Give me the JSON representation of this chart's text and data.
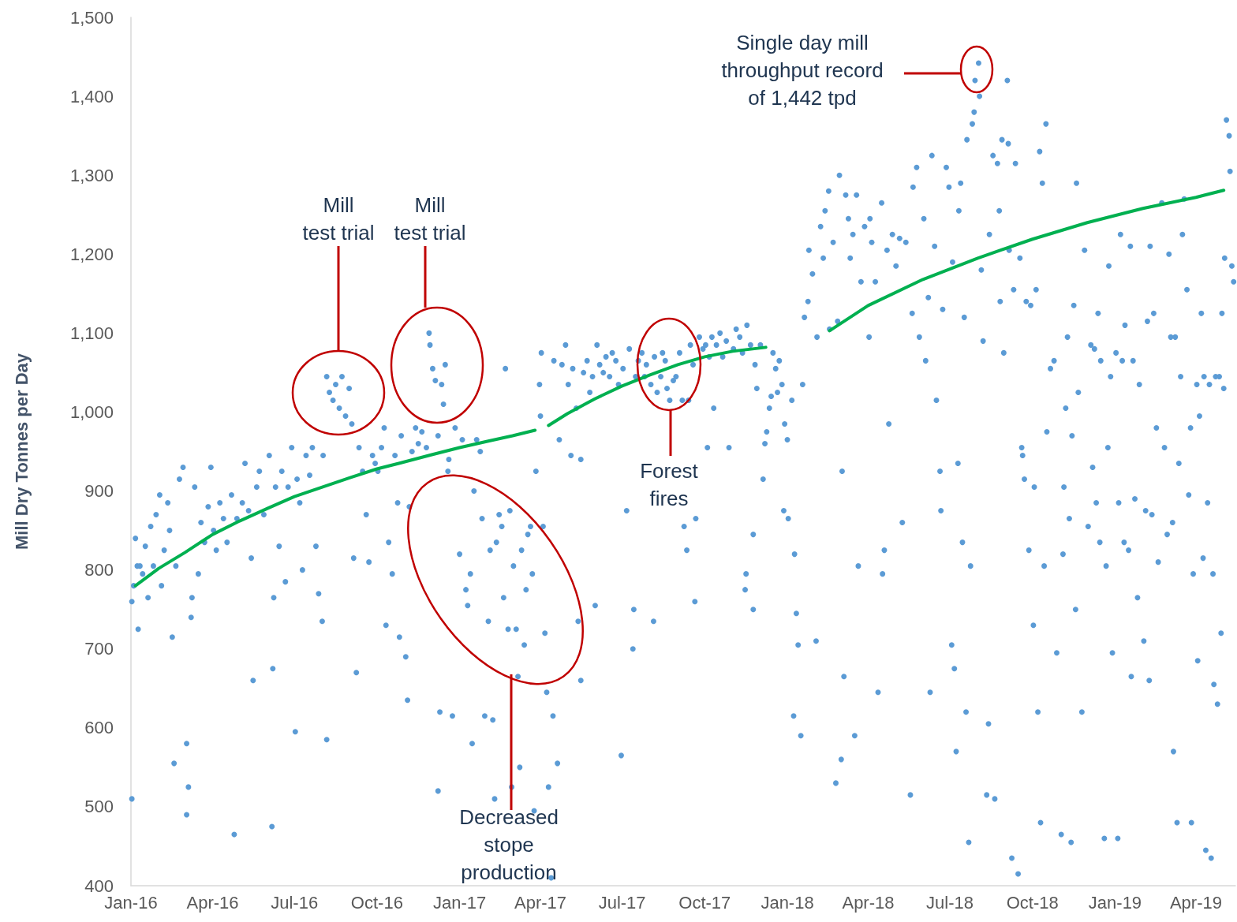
{
  "chart_data": {
    "type": "scatter",
    "ylabel": "Mill Dry Tonnes per Day",
    "xlim": [
      "2016-01-01",
      "2019-05-15"
    ],
    "xticks": [
      {
        "value": "2016-01-01",
        "label": "Jan-16"
      },
      {
        "value": "2016-04-01",
        "label": "Apr-16"
      },
      {
        "value": "2016-07-01",
        "label": "Jul-16"
      },
      {
        "value": "2016-10-01",
        "label": "Oct-16"
      },
      {
        "value": "2017-01-01",
        "label": "Jan-17"
      },
      {
        "value": "2017-04-01",
        "label": "Apr-17"
      },
      {
        "value": "2017-07-01",
        "label": "Jul-17"
      },
      {
        "value": "2017-10-01",
        "label": "Oct-17"
      },
      {
        "value": "2018-01-01",
        "label": "Jan-18"
      },
      {
        "value": "2018-04-01",
        "label": "Apr-18"
      },
      {
        "value": "2018-07-01",
        "label": "Jul-18"
      },
      {
        "value": "2018-10-01",
        "label": "Oct-18"
      },
      {
        "value": "2019-01-01",
        "label": "Jan-19"
      },
      {
        "value": "2019-04-01",
        "label": "Apr-19"
      }
    ],
    "ylim": [
      400,
      1500
    ],
    "yticks": [
      400,
      500,
      600,
      700,
      800,
      900,
      {
        "value": 1000,
        "label": "1,000"
      },
      {
        "value": 1100,
        "label": "1,100"
      },
      {
        "value": 1200,
        "label": "1,200"
      },
      {
        "value": 1300,
        "label": "1,300"
      },
      {
        "value": 1400,
        "label": "1,400"
      },
      {
        "value": 1500,
        "label": "1,500"
      }
    ],
    "annotations": [
      "Mill\ntest trial",
      "Mill\ntest trial",
      "Forest\nfires",
      "Decreased\nstope\nproduction",
      "Single day mill\nthroughput record\nof 1,442 tpd"
    ],
    "series": [
      {
        "color": "#5b9bd5",
        "marker": "circle",
        "x": [
          "2016-01-02",
          "2016-01-02",
          "2016-01-04",
          "2016-01-06",
          "2016-01-08",
          "2016-01-09",
          "2016-01-11",
          "2016-01-14",
          "2016-01-17",
          "2016-01-20",
          "2016-01-23",
          "2016-01-26",
          "2016-01-29",
          "2016-02-02",
          "2016-02-04",
          "2016-02-07",
          "2016-02-11",
          "2016-02-13",
          "2016-02-16",
          "2016-02-18",
          "2016-02-20",
          "2016-02-24",
          "2016-02-28",
          "2016-03-03",
          "2016-03-03",
          "2016-03-05",
          "2016-03-08",
          "2016-03-09",
          "2016-03-12",
          "2016-03-16",
          "2016-03-19",
          "2016-03-23",
          "2016-03-27",
          "2016-03-30",
          "2016-04-02",
          "2016-04-05",
          "2016-04-09",
          "2016-04-13",
          "2016-04-17",
          "2016-04-22",
          "2016-04-25",
          "2016-04-28",
          "2016-05-04",
          "2016-05-07",
          "2016-05-11",
          "2016-05-14",
          "2016-05-16",
          "2016-05-20",
          "2016-05-23",
          "2016-05-28",
          "2016-06-03",
          "2016-06-06",
          "2016-06-07",
          "2016-06-08",
          "2016-06-10",
          "2016-06-14",
          "2016-06-17",
          "2016-06-21",
          "2016-06-24",
          "2016-06-28",
          "2016-07-02",
          "2016-07-04",
          "2016-07-07",
          "2016-07-10",
          "2016-07-14",
          "2016-07-18",
          "2016-07-21",
          "2016-07-25",
          "2016-07-28",
          "2016-08-01",
          "2016-08-02",
          "2016-08-06",
          "2016-08-06",
          "2016-08-09",
          "2016-08-13",
          "2016-08-16",
          "2016-08-20",
          "2016-08-23",
          "2016-08-27",
          "2016-08-31",
          "2016-09-03",
          "2016-09-05",
          "2016-09-08",
          "2016-09-11",
          "2016-09-15",
          "2016-09-19",
          "2016-09-22",
          "2016-09-26",
          "2016-09-29",
          "2016-10-02",
          "2016-10-06",
          "2016-10-09",
          "2016-10-11",
          "2016-10-14",
          "2016-10-18",
          "2016-10-21",
          "2016-10-24",
          "2016-10-26",
          "2016-10-28",
          "2016-11-02",
          "2016-11-04",
          "2016-11-06",
          "2016-11-09",
          "2016-11-13",
          "2016-11-16",
          "2016-11-20",
          "2016-11-25",
          "2016-11-28",
          "2016-11-29",
          "2016-12-02",
          "2016-12-05",
          "2016-12-08",
          "2016-12-08",
          "2016-12-10",
          "2016-12-12",
          "2016-12-14",
          "2016-12-16",
          "2016-12-19",
          "2016-12-20",
          "2016-12-24",
          "2016-12-27",
          "2017-01-01",
          "2017-01-04",
          "2017-01-08",
          "2017-01-10",
          "2017-01-13",
          "2017-01-15",
          "2017-01-17",
          "2017-01-20",
          "2017-01-24",
          "2017-01-26",
          "2017-01-29",
          "2017-02-02",
          "2017-02-04",
          "2017-02-07",
          "2017-02-09",
          "2017-02-11",
          "2017-02-14",
          "2017-02-17",
          "2017-02-19",
          "2017-02-21",
          "2017-02-24",
          "2017-02-26",
          "2017-02-28",
          "2017-03-02",
          "2017-03-05",
          "2017-03-07",
          "2017-03-09",
          "2017-03-11",
          "2017-03-14",
          "2017-03-16",
          "2017-03-18",
          "2017-03-21",
          "2017-03-23",
          "2017-03-25",
          "2017-03-27",
          "2017-03-31",
          "2017-04-01",
          "2017-04-02",
          "2017-04-04",
          "2017-04-06",
          "2017-04-08",
          "2017-04-10",
          "2017-04-13",
          "2017-04-15",
          "2017-04-16",
          "2017-04-20",
          "2017-04-22",
          "2017-04-25",
          "2017-04-29",
          "2017-05-02",
          "2017-05-05",
          "2017-05-07",
          "2017-05-11",
          "2017-05-13",
          "2017-05-16",
          "2017-05-16",
          "2017-05-19",
          "2017-05-23",
          "2017-05-26",
          "2017-05-29",
          "2017-06-01",
          "2017-06-03",
          "2017-06-06",
          "2017-06-10",
          "2017-06-13",
          "2017-06-17",
          "2017-06-20",
          "2017-06-24",
          "2017-06-27",
          "2017-06-30",
          "2017-07-02",
          "2017-07-06",
          "2017-07-09",
          "2017-07-13",
          "2017-07-14",
          "2017-07-16",
          "2017-07-19",
          "2017-07-23",
          "2017-07-26",
          "2017-07-28",
          "2017-08-02",
          "2017-08-05",
          "2017-08-06",
          "2017-08-09",
          "2017-08-13",
          "2017-08-15",
          "2017-08-18",
          "2017-08-20",
          "2017-08-23",
          "2017-08-27",
          "2017-08-30",
          "2017-09-03",
          "2017-09-06",
          "2017-09-08",
          "2017-09-11",
          "2017-09-13",
          "2017-09-15",
          "2017-09-18",
          "2017-09-20",
          "2017-09-21",
          "2017-09-25",
          "2017-09-29",
          "2017-10-02",
          "2017-10-04",
          "2017-10-06",
          "2017-10-09",
          "2017-10-11",
          "2017-10-14",
          "2017-10-18",
          "2017-10-21",
          "2017-10-25",
          "2017-10-28",
          "2017-11-02",
          "2017-11-05",
          "2017-11-09",
          "2017-11-12",
          "2017-11-15",
          "2017-11-16",
          "2017-11-17",
          "2017-11-21",
          "2017-11-24",
          "2017-11-24",
          "2017-11-26",
          "2017-11-28",
          "2017-12-02",
          "2017-12-05",
          "2017-12-07",
          "2017-12-09",
          "2017-12-12",
          "2017-12-14",
          "2017-12-16",
          "2017-12-19",
          "2017-12-21",
          "2017-12-23",
          "2017-12-26",
          "2017-12-28",
          "2017-12-29",
          "2018-01-01",
          "2018-01-02",
          "2018-01-06",
          "2018-01-08",
          "2018-01-09",
          "2018-01-11",
          "2018-01-13",
          "2018-01-16",
          "2018-01-18",
          "2018-01-20",
          "2018-01-24",
          "2018-01-25",
          "2018-01-29",
          "2018-02-02",
          "2018-02-03",
          "2018-02-07",
          "2018-02-10",
          "2018-02-12",
          "2018-02-16",
          "2018-02-17",
          "2018-02-21",
          "2018-02-24",
          "2018-02-26",
          "2018-02-28",
          "2018-03-02",
          "2018-03-03",
          "2018-03-05",
          "2018-03-07",
          "2018-03-10",
          "2018-03-12",
          "2018-03-15",
          "2018-03-17",
          "2018-03-19",
          "2018-03-21",
          "2018-03-24",
          "2018-03-28",
          "2018-04-02",
          "2018-04-03",
          "2018-04-05",
          "2018-04-09",
          "2018-04-12",
          "2018-04-16",
          "2018-04-17",
          "2018-04-19",
          "2018-04-22",
          "2018-04-24",
          "2018-04-28",
          "2018-05-02",
          "2018-05-06",
          "2018-05-09",
          "2018-05-13",
          "2018-05-18",
          "2018-05-20",
          "2018-05-21",
          "2018-05-25",
          "2018-05-28",
          "2018-06-02",
          "2018-06-04",
          "2018-06-07",
          "2018-06-09",
          "2018-06-11",
          "2018-06-14",
          "2018-06-16",
          "2018-06-20",
          "2018-06-21",
          "2018-06-23",
          "2018-06-27",
          "2018-06-30",
          "2018-07-03",
          "2018-07-04",
          "2018-07-06",
          "2018-07-08",
          "2018-07-10",
          "2018-07-11",
          "2018-07-13",
          "2018-07-15",
          "2018-07-17",
          "2018-07-19",
          "2018-07-20",
          "2018-07-22",
          "2018-07-24",
          "2018-07-26",
          "2018-07-28",
          "2018-07-29",
          "2018-08-02",
          "2018-08-03",
          "2018-08-05",
          "2018-08-07",
          "2018-08-11",
          "2018-08-13",
          "2018-08-14",
          "2018-08-18",
          "2018-08-20",
          "2018-08-23",
          "2018-08-25",
          "2018-08-26",
          "2018-08-28",
          "2018-08-30",
          "2018-09-03",
          "2018-09-04",
          "2018-09-05",
          "2018-09-08",
          "2018-09-10",
          "2018-09-12",
          "2018-09-15",
          "2018-09-17",
          "2018-09-19",
          "2018-09-20",
          "2018-09-22",
          "2018-09-24",
          "2018-09-27",
          "2018-09-29",
          "2018-10-02",
          "2018-10-03",
          "2018-10-05",
          "2018-10-07",
          "2018-10-09",
          "2018-10-10",
          "2018-10-12",
          "2018-10-14",
          "2018-10-16",
          "2018-10-17",
          "2018-10-21",
          "2018-10-25",
          "2018-10-28",
          "2018-11-02",
          "2018-11-04",
          "2018-11-05",
          "2018-11-07",
          "2018-11-09",
          "2018-11-11",
          "2018-11-13",
          "2018-11-14",
          "2018-11-16",
          "2018-11-18",
          "2018-11-19",
          "2018-11-21",
          "2018-11-25",
          "2018-11-28",
          "2018-12-02",
          "2018-12-05",
          "2018-12-07",
          "2018-12-09",
          "2018-12-11",
          "2018-12-13",
          "2018-12-15",
          "2018-12-16",
          "2018-12-20",
          "2018-12-22",
          "2018-12-24",
          "2018-12-25",
          "2018-12-27",
          "2018-12-29",
          "2019-01-02",
          "2019-01-04",
          "2019-01-05",
          "2019-01-07",
          "2019-01-09",
          "2019-01-11",
          "2019-01-12",
          "2019-01-16",
          "2019-01-18",
          "2019-01-19",
          "2019-01-21",
          "2019-01-23",
          "2019-01-26",
          "2019-01-28",
          "2019-02-02",
          "2019-02-04",
          "2019-02-06",
          "2019-02-08",
          "2019-02-09",
          "2019-02-11",
          "2019-02-13",
          "2019-02-16",
          "2019-02-18",
          "2019-02-22",
          "2019-02-25",
          "2019-02-28",
          "2019-03-02",
          "2019-03-04",
          "2019-03-06",
          "2019-03-07",
          "2019-03-09",
          "2019-03-11",
          "2019-03-13",
          "2019-03-15",
          "2019-03-17",
          "2019-03-19",
          "2019-03-22",
          "2019-03-24",
          "2019-03-26",
          "2019-03-27",
          "2019-03-29",
          "2019-04-02",
          "2019-04-03",
          "2019-04-05",
          "2019-04-07",
          "2019-04-09",
          "2019-04-10",
          "2019-04-12",
          "2019-04-14",
          "2019-04-16",
          "2019-04-18",
          "2019-04-20",
          "2019-04-21",
          "2019-04-23",
          "2019-04-25",
          "2019-04-27",
          "2019-04-29",
          "2019-04-30",
          "2019-05-02",
          "2019-05-03",
          "2019-05-05",
          "2019-05-08",
          "2019-05-09",
          "2019-05-11",
          "2019-05-13"
        ],
        "values": [
          510,
          760,
          780,
          840,
          805,
          725,
          805,
          795,
          830,
          765,
          855,
          805,
          870,
          895,
          780,
          825,
          885,
          850,
          715,
          555,
          805,
          915,
          930,
          580,
          490,
          525,
          740,
          765,
          905,
          795,
          860,
          835,
          880,
          930,
          850,
          825,
          885,
          865,
          835,
          895,
          465,
          865,
          885,
          935,
          875,
          815,
          660,
          905,
          925,
          870,
          945,
          475,
          675,
          765,
          905,
          830,
          925,
          785,
          905,
          955,
          595,
          915,
          885,
          800,
          945,
          920,
          955,
          830,
          770,
          735,
          945,
          585,
          1045,
          1025,
          1015,
          1035,
          1005,
          1045,
          995,
          1030,
          985,
          815,
          670,
          955,
          925,
          870,
          810,
          945,
          935,
          925,
          955,
          980,
          730,
          835,
          795,
          945,
          885,
          715,
          970,
          690,
          635,
          880,
          950,
          980,
          960,
          975,
          955,
          1100,
          1085,
          1055,
          1040,
          970,
          520,
          620,
          1035,
          1010,
          1060,
          925,
          940,
          615,
          980,
          820,
          965,
          775,
          755,
          795,
          580,
          900,
          965,
          950,
          865,
          615,
          735,
          825,
          610,
          510,
          835,
          870,
          855,
          765,
          1055,
          725,
          875,
          525,
          805,
          725,
          665,
          550,
          825,
          705,
          775,
          845,
          855,
          795,
          495,
          925,
          1035,
          995,
          1075,
          855,
          720,
          645,
          525,
          410,
          615,
          1065,
          555,
          965,
          1060,
          1085,
          1035,
          945,
          1055,
          1005,
          735,
          940,
          660,
          1050,
          1065,
          1025,
          1045,
          755,
          1085,
          1060,
          1050,
          1070,
          1045,
          1075,
          1065,
          1035,
          565,
          1055,
          875,
          1080,
          700,
          750,
          1045,
          1065,
          1075,
          1045,
          1060,
          1035,
          735,
          1070,
          1025,
          1045,
          1075,
          1065,
          1030,
          1015,
          1040,
          1045,
          1075,
          1015,
          855,
          825,
          1015,
          1085,
          1060,
          760,
          865,
          1095,
          1080,
          1085,
          955,
          1070,
          1095,
          1005,
          1085,
          1100,
          1070,
          1090,
          955,
          1080,
          1105,
          1095,
          1075,
          775,
          795,
          1110,
          1085,
          750,
          845,
          1060,
          1030,
          1085,
          915,
          960,
          975,
          1005,
          1020,
          1075,
          1055,
          1025,
          1065,
          1035,
          875,
          985,
          965,
          865,
          1015,
          615,
          820,
          745,
          705,
          590,
          1035,
          1120,
          1140,
          1205,
          1175,
          710,
          1095,
          1235,
          1195,
          1255,
          1280,
          1105,
          1215,
          530,
          1115,
          1300,
          560,
          925,
          665,
          1275,
          1245,
          1195,
          1225,
          590,
          1275,
          805,
          1165,
          1235,
          1095,
          1245,
          1215,
          1165,
          645,
          1265,
          795,
          825,
          1205,
          985,
          1225,
          1185,
          1220,
          860,
          1215,
          515,
          1125,
          1285,
          1310,
          1095,
          1245,
          1065,
          1145,
          645,
          1325,
          1210,
          1015,
          925,
          875,
          1130,
          1310,
          1285,
          705,
          1190,
          675,
          570,
          935,
          1255,
          1290,
          835,
          1120,
          620,
          1345,
          455,
          805,
          1365,
          1380,
          1420,
          1442,
          1400,
          1180,
          1090,
          515,
          605,
          1225,
          1325,
          510,
          1315,
          1255,
          1140,
          1345,
          1075,
          1420,
          1340,
          1205,
          435,
          1155,
          1315,
          415,
          1195,
          955,
          945,
          915,
          1140,
          825,
          1135,
          730,
          905,
          1155,
          620,
          1330,
          480,
          1290,
          805,
          1365,
          975,
          1055,
          1065,
          695,
          465,
          820,
          905,
          1005,
          1095,
          865,
          455,
          970,
          1135,
          750,
          1290,
          1025,
          620,
          1205,
          855,
          1085,
          930,
          1080,
          885,
          1125,
          835,
          1065,
          460,
          805,
          955,
          1185,
          1045,
          695,
          1075,
          460,
          885,
          1225,
          1065,
          835,
          1110,
          825,
          1210,
          665,
          1065,
          890,
          765,
          1035,
          710,
          875,
          1115,
          660,
          1210,
          870,
          1125,
          980,
          810,
          1265,
          955,
          845,
          1200,
          1095,
          860,
          570,
          1095,
          480,
          935,
          1045,
          1225,
          1270,
          1155,
          895,
          980,
          480,
          795,
          1035,
          685,
          995,
          1125,
          815,
          1045,
          445,
          885,
          1035,
          435,
          795,
          655,
          1045,
          630,
          1045,
          720,
          1125,
          1030,
          1195,
          1370,
          1350,
          1305,
          1185,
          1165
        ]
      },
      {
        "type": "line",
        "color": "#00b050",
        "marker": "none",
        "x": [
          "2016-01-06",
          "2016-02-01",
          "2016-03-01",
          "2016-04-01",
          "2016-05-01",
          "2016-06-01",
          "2016-07-01",
          "2016-08-01",
          "2016-09-01",
          "2016-10-01",
          "2016-11-01",
          "2016-12-01",
          "2017-01-01",
          "2017-02-01",
          "2017-03-01",
          "2017-03-26"
        ],
        "values": [
          780,
          802,
          822,
          845,
          862,
          878,
          893,
          905,
          917,
          928,
          937,
          946,
          955,
          963,
          970,
          977
        ]
      },
      {
        "type": "line",
        "color": "#00b050",
        "marker": "none",
        "x": [
          "2017-04-10",
          "2017-05-01",
          "2017-06-01",
          "2017-07-01",
          "2017-08-01",
          "2017-09-01",
          "2017-10-01",
          "2017-11-01",
          "2017-12-08"
        ],
        "values": [
          983,
          998,
          1017,
          1033,
          1047,
          1060,
          1070,
          1077,
          1082
        ]
      },
      {
        "type": "line",
        "color": "#00b050",
        "marker": "none",
        "x": [
          "2018-02-17",
          "2018-04-01",
          "2018-06-01",
          "2018-08-01",
          "2018-10-01",
          "2018-12-01",
          "2019-02-01",
          "2019-04-01",
          "2019-05-02"
        ],
        "values": [
          1103,
          1135,
          1168,
          1195,
          1219,
          1240,
          1258,
          1272,
          1281
        ]
      }
    ]
  }
}
